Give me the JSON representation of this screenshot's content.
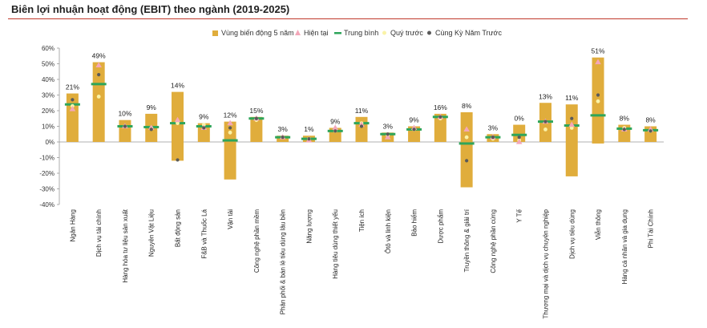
{
  "title": "Biên lợi nhuận hoạt động (EBIT) theo ngành (2019-2025)",
  "colors": {
    "range": "#E0AD3C",
    "current": "#F4A7B9",
    "mean": "#2EA55A",
    "prev_quarter": "#FAF3A8",
    "prev_year": "#5A5A5A",
    "rule": "#C0392B"
  },
  "chart_data": {
    "type": "bar",
    "legend_position": "top-right",
    "ylim": [
      -40,
      60
    ],
    "ytick_step": 10,
    "yticks": [
      "60%",
      "50%",
      "40%",
      "30%",
      "20%",
      "10%",
      "0%",
      "-10%",
      "-20%",
      "-30%",
      "-40%"
    ],
    "grid": false,
    "legend": [
      "Vùng biến động 5 năm",
      "Hiện tại",
      "Trung bình",
      "Quý trước",
      "Cùng Kỳ Năm Trước"
    ],
    "categories": [
      "Ngân Hàng",
      "Dịch vụ tài chính",
      "Hàng hóa tư liệu sản xuất",
      "Nguyên Vật Liệu",
      "Bất động sản",
      "F&B và Thuốc Lá",
      "Vận tải",
      "Công nghệ phần mềm",
      "Phân phối & bán lẻ tiêu dùng lâu bền",
      "Năng lượng",
      "Hàng tiêu dùng thiết yếu",
      "Tiện ích",
      "Ôtô và linh kiện",
      "Bảo hiểm",
      "Dược phẩm",
      "Truyền thông & giải trí",
      "Công nghệ phần cứng",
      "Y Tế",
      "Thương mại và dịch vụ chuyên nghiệp",
      "Dịch vụ tiêu dùng",
      "Viễn thông",
      "Hàng cá nhân và gia dụng",
      "Phi Tài Chính"
    ],
    "range_low": [
      0,
      0,
      0,
      0,
      -12,
      0,
      -24,
      0,
      0,
      0,
      0,
      0,
      0,
      0,
      0,
      -29,
      0,
      0,
      0,
      -22,
      -1,
      0,
      0
    ],
    "range_high": [
      31,
      51,
      14,
      18,
      32,
      12,
      13,
      16,
      4,
      4,
      9,
      16,
      6,
      10,
      18,
      19,
      5,
      11,
      25,
      24,
      54,
      11,
      10
    ],
    "current": [
      21,
      49,
      10,
      9,
      14,
      9,
      12,
      15,
      3,
      1,
      9,
      11,
      3,
      9,
      16,
      8,
      3,
      0,
      13,
      11,
      51,
      8,
      8
    ],
    "mean": [
      24,
      37,
      10,
      9.5,
      12,
      10,
      1,
      15,
      3,
      2,
      7,
      12,
      5,
      8,
      16,
      -1,
      3,
      4.5,
      13,
      10.5,
      17,
      8.5,
      7.5
    ],
    "prev_quarter": [
      23,
      29,
      10,
      9,
      12,
      11,
      6,
      14,
      3,
      2,
      7,
      12,
      4,
      8,
      15,
      3,
      2,
      1,
      8,
      9,
      26,
      9,
      7
    ],
    "prev_year": [
      27,
      43,
      10,
      8,
      -11.5,
      9,
      9,
      15,
      3,
      2,
      7,
      10,
      5,
      8,
      16,
      -12,
      3,
      3,
      13,
      15,
      30,
      8,
      7
    ],
    "data_labels": [
      "21%",
      "49%",
      "10%",
      "9%",
      "14%",
      "9%",
      "12%",
      "15%",
      "3%",
      "1%",
      "9%",
      "11%",
      "3%",
      "9%",
      "16%",
      "8%",
      "3%",
      "0%",
      "13%",
      "11%",
      "51%",
      "8%",
      "8%"
    ]
  }
}
